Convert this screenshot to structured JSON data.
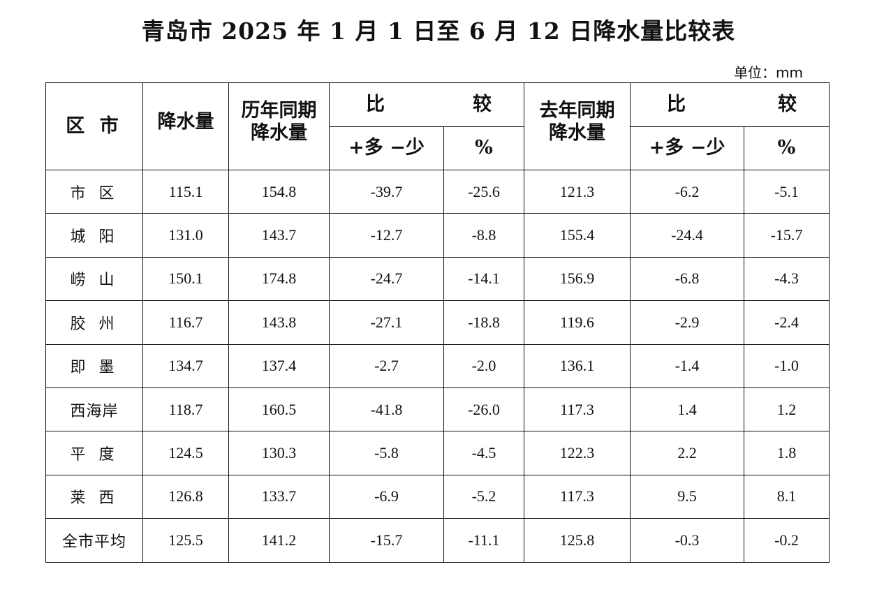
{
  "title": "青岛市 2025 年 1 月 1 日至 6 月 12 日降水量比较表",
  "unit": "单位：mm",
  "headers": {
    "region": "区 市",
    "precip": "降水量",
    "hist_line1": "历年同期",
    "hist_line2": "降水量",
    "compare_left": "比",
    "compare_right": "较",
    "diff": "+多 −少",
    "pct": "%",
    "last_line1": "去年同期",
    "last_line2": "降水量"
  },
  "rows": [
    {
      "region": "市 区",
      "precip": "115.1",
      "hist": "154.8",
      "hist_diff": "-39.7",
      "hist_pct": "-25.6",
      "last": "121.3",
      "last_diff": "-6.2",
      "last_pct": "-5.1"
    },
    {
      "region": "城 阳",
      "precip": "131.0",
      "hist": "143.7",
      "hist_diff": "-12.7",
      "hist_pct": "-8.8",
      "last": "155.4",
      "last_diff": "-24.4",
      "last_pct": "-15.7"
    },
    {
      "region": "崂 山",
      "precip": "150.1",
      "hist": "174.8",
      "hist_diff": "-24.7",
      "hist_pct": "-14.1",
      "last": "156.9",
      "last_diff": "-6.8",
      "last_pct": "-4.3"
    },
    {
      "region": "胶 州",
      "precip": "116.7",
      "hist": "143.8",
      "hist_diff": "-27.1",
      "hist_pct": "-18.8",
      "last": "119.6",
      "last_diff": "-2.9",
      "last_pct": "-2.4"
    },
    {
      "region": "即 墨",
      "precip": "134.7",
      "hist": "137.4",
      "hist_diff": "-2.7",
      "hist_pct": "-2.0",
      "last": "136.1",
      "last_diff": "-1.4",
      "last_pct": "-1.0"
    },
    {
      "region": "西海岸",
      "precip": "118.7",
      "hist": "160.5",
      "hist_diff": "-41.8",
      "hist_pct": "-26.0",
      "last": "117.3",
      "last_diff": "1.4",
      "last_pct": "1.2"
    },
    {
      "region": "平 度",
      "precip": "124.5",
      "hist": "130.3",
      "hist_diff": "-5.8",
      "hist_pct": "-4.5",
      "last": "122.3",
      "last_diff": "2.2",
      "last_pct": "1.8"
    },
    {
      "region": "莱 西",
      "precip": "126.8",
      "hist": "133.7",
      "hist_diff": "-6.9",
      "hist_pct": "-5.2",
      "last": "117.3",
      "last_diff": "9.5",
      "last_pct": "8.1"
    },
    {
      "region": "全市平均",
      "precip": "125.5",
      "hist": "141.2",
      "hist_diff": "-15.7",
      "hist_pct": "-11.1",
      "last": "125.8",
      "last_diff": "-0.3",
      "last_pct": "-0.2"
    }
  ]
}
